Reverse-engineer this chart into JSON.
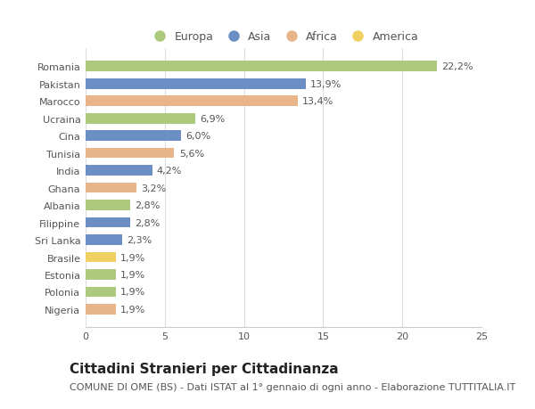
{
  "countries": [
    "Romania",
    "Pakistan",
    "Marocco",
    "Ucraina",
    "Cina",
    "Tunisia",
    "India",
    "Ghana",
    "Albania",
    "Filippine",
    "Sri Lanka",
    "Brasile",
    "Estonia",
    "Polonia",
    "Nigeria"
  ],
  "values": [
    22.2,
    13.9,
    13.4,
    6.9,
    6.0,
    5.6,
    4.2,
    3.2,
    2.8,
    2.8,
    2.3,
    1.9,
    1.9,
    1.9,
    1.9
  ],
  "continents": [
    "Europa",
    "Asia",
    "Africa",
    "Europa",
    "Asia",
    "Africa",
    "Asia",
    "Africa",
    "Europa",
    "Asia",
    "Asia",
    "America",
    "Europa",
    "Europa",
    "Africa"
  ],
  "colors": {
    "Europa": "#adc97e",
    "Asia": "#6b8ec4",
    "Africa": "#e8b48a",
    "America": "#f0d060"
  },
  "legend_order": [
    "Europa",
    "Asia",
    "Africa",
    "America"
  ],
  "xlim": [
    0,
    25
  ],
  "xticks": [
    0,
    5,
    10,
    15,
    20,
    25
  ],
  "title": "Cittadini Stranieri per Cittadinanza",
  "subtitle": "COMUNE DI OME (BS) - Dati ISTAT al 1° gennaio di ogni anno - Elaborazione TUTTITALIA.IT",
  "background_color": "#ffffff",
  "plot_bg_color": "#ffffff",
  "bar_height": 0.6,
  "title_fontsize": 11,
  "subtitle_fontsize": 8,
  "label_fontsize": 8,
  "tick_fontsize": 8,
  "legend_fontsize": 9
}
